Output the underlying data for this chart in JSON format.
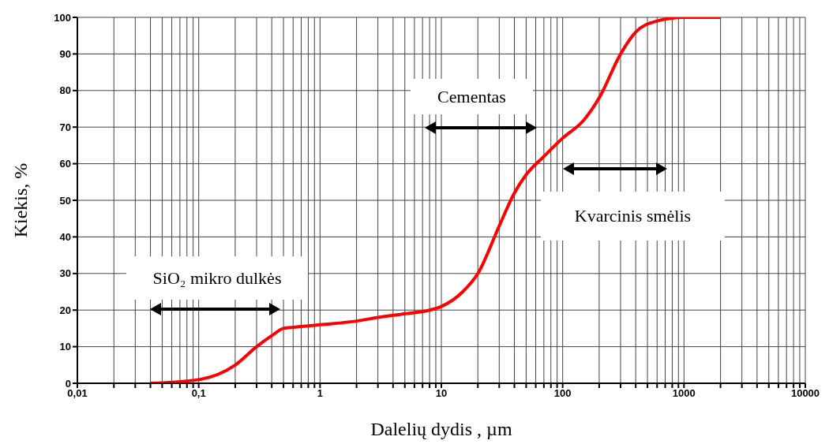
{
  "chart_data": {
    "type": "line",
    "xlabel": "Dalelių dydis , µm",
    "ylabel": "Kiekis, %",
    "x": [
      0.04,
      0.1,
      0.2,
      0.3,
      0.4,
      0.5,
      0.7,
      1,
      2,
      3,
      5,
      8,
      10,
      15,
      20,
      30,
      40,
      50,
      70,
      100,
      150,
      200,
      300,
      400,
      600,
      1000,
      2000
    ],
    "series": [
      {
        "color": "#ff0000",
        "values": [
          0,
          1,
          5,
          10,
          13,
          15,
          15.5,
          16,
          17,
          18,
          19,
          20,
          21,
          25,
          30,
          43,
          52,
          57,
          62,
          67,
          72,
          78,
          90,
          96,
          99,
          100,
          100
        ]
      }
    ],
    "log": "x",
    "xlim": [
      0.01,
      10000
    ],
    "xticks": [
      {
        "value": 0.01,
        "label": "0,01"
      },
      {
        "value": 0.02,
        "label": null
      },
      {
        "value": 0.03,
        "label": null
      },
      {
        "value": 0.04,
        "label": null
      },
      {
        "value": 0.05,
        "label": null
      },
      {
        "value": 0.06,
        "label": null
      },
      {
        "value": 0.07,
        "label": null
      },
      {
        "value": 0.08,
        "label": null
      },
      {
        "value": 0.09,
        "label": null
      },
      {
        "value": 0.1,
        "label": "0,1"
      },
      {
        "value": 0.2,
        "label": null
      },
      {
        "value": 0.3,
        "label": null
      },
      {
        "value": 0.4,
        "label": null
      },
      {
        "value": 0.5,
        "label": null
      },
      {
        "value": 0.6,
        "label": null
      },
      {
        "value": 0.7,
        "label": null
      },
      {
        "value": 0.8,
        "label": null
      },
      {
        "value": 0.9,
        "label": null
      },
      1,
      {
        "value": 2,
        "label": null
      },
      {
        "value": 3,
        "label": null
      },
      {
        "value": 4,
        "label": null
      },
      {
        "value": 5,
        "label": null
      },
      {
        "value": 6,
        "label": null
      },
      {
        "value": 7,
        "label": null
      },
      {
        "value": 8,
        "label": null
      },
      {
        "value": 9,
        "label": null
      },
      10,
      {
        "value": 20,
        "label": null
      },
      {
        "value": 30,
        "label": null
      },
      {
        "value": 40,
        "label": null
      },
      {
        "value": 50,
        "label": null
      },
      {
        "value": 60,
        "label": null
      },
      {
        "value": 70,
        "label": null
      },
      {
        "value": 80,
        "label": null
      },
      {
        "value": 90,
        "label": null
      },
      100,
      {
        "value": 200,
        "label": null
      },
      {
        "value": 300,
        "label": null
      },
      {
        "value": 400,
        "label": null
      },
      {
        "value": 500,
        "label": null
      },
      {
        "value": 600,
        "label": null
      },
      {
        "value": 700,
        "label": null
      },
      {
        "value": 800,
        "label": null
      },
      {
        "value": 900,
        "label": null
      },
      1000,
      {
        "value": 2000,
        "label": null
      },
      {
        "value": 3000,
        "label": null
      },
      {
        "value": 4000,
        "label": null
      },
      {
        "value": 5000,
        "label": null
      },
      {
        "value": 6000,
        "label": null
      },
      {
        "value": 7000,
        "label": null
      },
      {
        "value": 8000,
        "label": null
      },
      {
        "value": 9000,
        "label": null
      },
      10000
    ],
    "ylim": [
      0,
      100
    ],
    "yticks": [
      0,
      10,
      20,
      30,
      40,
      50,
      60,
      70,
      80,
      90,
      100
    ],
    "grid": true,
    "marker": "none",
    "line_style": "solid",
    "annotations": [
      "SiO₂ mikro dulkės",
      "Cementas",
      "Kvarcinis smėlis"
    ]
  }
}
